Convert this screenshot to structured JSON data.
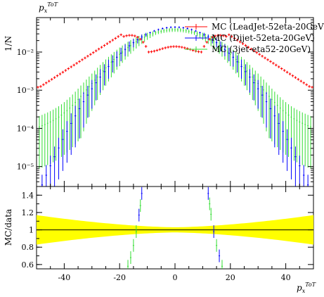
{
  "chart_data": {
    "type": "scatter",
    "title_top": "p_x^{ToT}",
    "main": {
      "ylabel": "1/N",
      "yscale": "log",
      "xlim": [
        -50,
        50
      ],
      "ylim": [
        3e-06,
        0.08
      ],
      "yticks": [
        {
          "v": 0.01,
          "label": "10⁻²"
        },
        {
          "v": 0.001,
          "label": "10⁻³"
        },
        {
          "v": 0.0001,
          "label": "10⁻⁴"
        },
        {
          "v": 1e-05,
          "label": "10⁻⁵"
        }
      ]
    },
    "ratio": {
      "ylabel": "MC/data",
      "ylim": [
        0.55,
        1.5
      ],
      "yticks": [
        {
          "v": 0.6,
          "label": "0.6"
        },
        {
          "v": 0.8,
          "label": "0.8"
        },
        {
          "v": 1.0,
          "label": "1"
        },
        {
          "v": 1.2,
          "label": "1.2"
        },
        {
          "v": 1.4,
          "label": "1.4"
        }
      ]
    },
    "x": {
      "label": "p_x^{ToT}",
      "ticks": [
        {
          "v": -40,
          "label": "-40"
        },
        {
          "v": -20,
          "label": "-20"
        },
        {
          "v": 0,
          "label": "0"
        },
        {
          "v": 20,
          "label": "20"
        },
        {
          "v": 40,
          "label": "40"
        }
      ]
    },
    "series": [
      {
        "name": "MC (LeadJet-52eta-20GeV)",
        "color": "#ff0000"
      },
      {
        "name": "MC (Dijet-52eta-20GeV)",
        "color": "#0000ff"
      },
      {
        "name": "MC (3jet-eta52-20GeV)",
        "color": "#33dd33"
      }
    ],
    "data_band": {
      "color": "#ffff00",
      "line_color": "#000000"
    }
  }
}
